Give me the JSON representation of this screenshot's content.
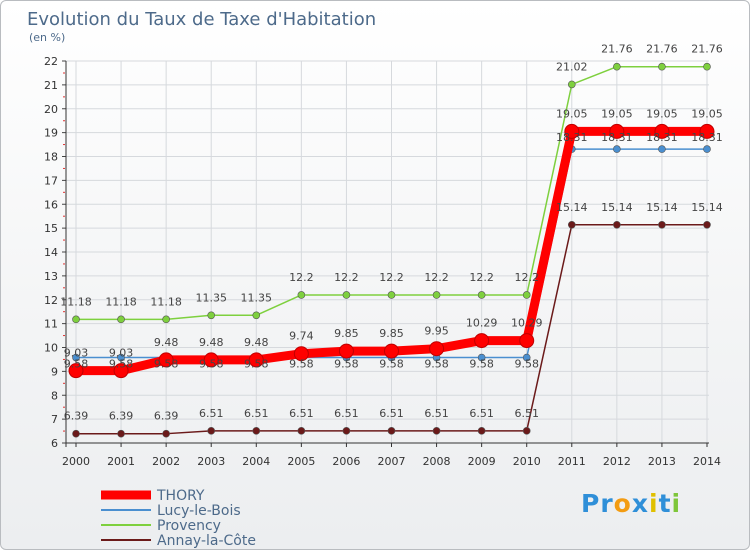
{
  "chart_data": {
    "type": "line",
    "title": "Evolution du Taux de Taxe d'Habitation",
    "subtitle": "(en %)",
    "xlabel": "",
    "ylabel": "",
    "categories": [
      "2000",
      "2001",
      "2002",
      "2003",
      "2004",
      "2005",
      "2006",
      "2007",
      "2008",
      "2009",
      "2010",
      "2011",
      "2012",
      "2013",
      "2014"
    ],
    "ylim": [
      6,
      22
    ],
    "yticks": [
      6,
      7,
      8,
      9,
      10,
      11,
      12,
      13,
      14,
      15,
      16,
      17,
      18,
      19,
      20,
      21,
      22
    ],
    "legend_position": "bottom-left",
    "series": [
      {
        "name": "THORY",
        "color": "#ff0000",
        "labels": [
          "9.03",
          "9.03",
          "9.48",
          "9.48",
          "9.48",
          "9.74",
          "9.85",
          "9.85",
          "9.95",
          "10.29",
          "10.29",
          "19.05",
          "19.05",
          "19.05",
          "19.05"
        ],
        "values": [
          9.03,
          9.03,
          9.48,
          9.48,
          9.48,
          9.74,
          9.85,
          9.85,
          9.95,
          10.29,
          10.29,
          19.05,
          19.05,
          19.05,
          19.05
        ]
      },
      {
        "name": "Lucy-le-Bois",
        "color": "#4a8fd0",
        "labels": [
          "9.58",
          "9.58",
          "9.58",
          "9.58",
          "9.58",
          "9.58",
          "9.58",
          "9.58",
          "9.58",
          "9.58",
          "9.58",
          "18.31",
          "18.31",
          "18.31",
          "18.31"
        ],
        "values": [
          9.58,
          9.58,
          9.58,
          9.58,
          9.58,
          9.58,
          9.58,
          9.58,
          9.58,
          9.58,
          9.58,
          18.31,
          18.31,
          18.31,
          18.31
        ]
      },
      {
        "name": "Provency",
        "color": "#7ed03e",
        "labels": [
          "11.18",
          "11.18",
          "11.18",
          "11.35",
          "11.35",
          "12.2",
          "12.2",
          "12.2",
          "12.2",
          "12.2",
          "12.2",
          "21.02",
          "21.76",
          "21.76",
          "21.76"
        ],
        "values": [
          11.18,
          11.18,
          11.18,
          11.35,
          11.35,
          12.2,
          12.2,
          12.2,
          12.2,
          12.2,
          12.2,
          21.02,
          21.76,
          21.76,
          21.76
        ]
      },
      {
        "name": "Annay-la-Côte",
        "color": "#6b1a1a",
        "labels": [
          "6.39",
          "6.39",
          "6.39",
          "6.51",
          "6.51",
          "6.51",
          "6.51",
          "6.51",
          "6.51",
          "6.51",
          "6.51",
          "15.14",
          "15.14",
          "15.14",
          "15.14"
        ],
        "values": [
          6.39,
          6.39,
          6.39,
          6.51,
          6.51,
          6.51,
          6.51,
          6.51,
          6.51,
          6.51,
          6.51,
          15.14,
          15.14,
          15.14,
          15.14
        ]
      }
    ]
  },
  "logo": {
    "text": "Proxiti",
    "letters": [
      "P",
      "r",
      "o",
      "x",
      "i",
      "t",
      "i"
    ],
    "colors": [
      "#2f8fd8",
      "#2f8fd8",
      "#f39c12",
      "#2f8fd8",
      "#e0c000",
      "#2f8fd8",
      "#7ec63a"
    ]
  }
}
